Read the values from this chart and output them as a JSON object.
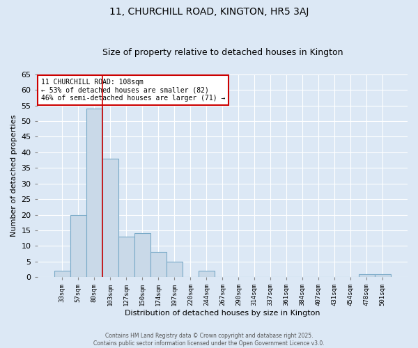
{
  "title": "11, CHURCHILL ROAD, KINGTON, HR5 3AJ",
  "subtitle": "Size of property relative to detached houses in Kington",
  "xlabel": "Distribution of detached houses by size in Kington",
  "ylabel": "Number of detached properties",
  "bin_labels": [
    "33sqm",
    "57sqm",
    "80sqm",
    "103sqm",
    "127sqm",
    "150sqm",
    "174sqm",
    "197sqm",
    "220sqm",
    "244sqm",
    "267sqm",
    "290sqm",
    "314sqm",
    "337sqm",
    "361sqm",
    "384sqm",
    "407sqm",
    "431sqm",
    "454sqm",
    "478sqm",
    "501sqm"
  ],
  "bar_heights": [
    2,
    20,
    54,
    38,
    13,
    14,
    8,
    5,
    0,
    2,
    0,
    0,
    0,
    0,
    0,
    0,
    0,
    0,
    0,
    1,
    1
  ],
  "bar_color": "#c9d9e8",
  "bar_edge_color": "#7aaac8",
  "vline_x_index": 2.5,
  "vline_color": "#cc0000",
  "annotation_text": "11 CHURCHILL ROAD: 108sqm\n← 53% of detached houses are smaller (82)\n46% of semi-detached houses are larger (71) →",
  "annotation_box_color": "#ffffff",
  "annotation_box_edge": "#cc0000",
  "ylim": [
    0,
    65
  ],
  "yticks": [
    0,
    5,
    10,
    15,
    20,
    25,
    30,
    35,
    40,
    45,
    50,
    55,
    60,
    65
  ],
  "footnote": "Contains HM Land Registry data © Crown copyright and database right 2025.\nContains public sector information licensed under the Open Government Licence v3.0.",
  "bg_color": "#dce8f5",
  "plot_bg_color": "#dce8f5",
  "grid_color": "#ffffff",
  "title_fontsize": 10,
  "subtitle_fontsize": 9
}
